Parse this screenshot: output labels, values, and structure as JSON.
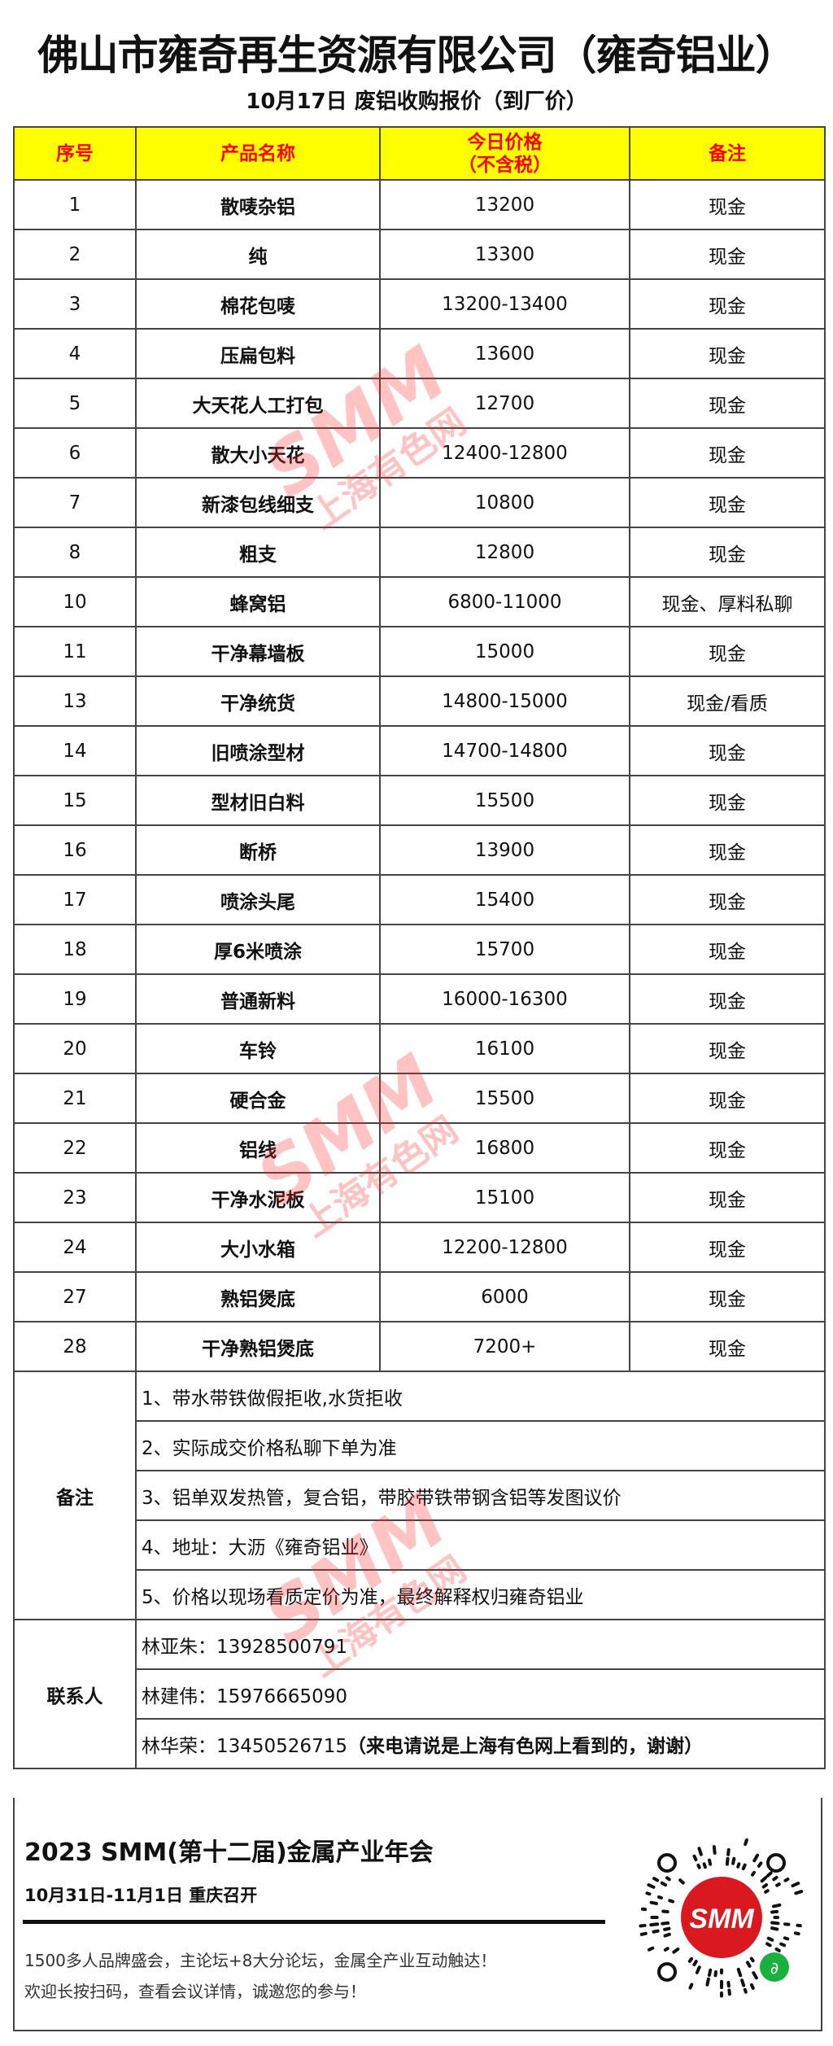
{
  "header": {
    "title": "佛山市雍奇再生资源有限公司（雍奇铝业）",
    "subtitle": "10月17日 废铝收购报价（到厂价）"
  },
  "table": {
    "columns": [
      "序号",
      "产品名称",
      "今日价格",
      "（不含税）",
      "备注"
    ],
    "rows": [
      {
        "no": "1",
        "name": "散唛杂铝",
        "price": "13200",
        "note": "现金"
      },
      {
        "no": "2",
        "name": "纯",
        "price": "13300",
        "note": "现金"
      },
      {
        "no": "3",
        "name": "棉花包唛",
        "price": "13200-13400",
        "note": "现金"
      },
      {
        "no": "4",
        "name": "压扁包料",
        "price": "13600",
        "note": "现金"
      },
      {
        "no": "5",
        "name": "大天花人工打包",
        "price": "12700",
        "note": "现金"
      },
      {
        "no": "6",
        "name": "散大小天花",
        "price": "12400-12800",
        "note": "现金"
      },
      {
        "no": "7",
        "name": "新漆包线细支",
        "price": "10800",
        "note": "现金"
      },
      {
        "no": "8",
        "name": "粗支",
        "price": "12800",
        "note": "现金"
      },
      {
        "no": "10",
        "name": "蜂窝铝",
        "price": "6800-11000",
        "note": "现金、厚料私聊"
      },
      {
        "no": "11",
        "name": "干净幕墙板",
        "price": "15000",
        "note": "现金"
      },
      {
        "no": "13",
        "name": "干净统货",
        "price": "14800-15000",
        "note": "现金/看质"
      },
      {
        "no": "14",
        "name": "旧喷涂型材",
        "price": "14700-14800",
        "note": "现金"
      },
      {
        "no": "15",
        "name": "型材旧白料",
        "price": "15500",
        "note": "现金"
      },
      {
        "no": "16",
        "name": "断桥",
        "price": "13900",
        "note": "现金"
      },
      {
        "no": "17",
        "name": "喷涂头尾",
        "price": "15400",
        "note": "现金"
      },
      {
        "no": "18",
        "name": "厚6米喷涂",
        "price": "15700",
        "note": "现金"
      },
      {
        "no": "19",
        "name": "普通新料",
        "price": "16000-16300",
        "note": "现金"
      },
      {
        "no": "20",
        "name": "车铃",
        "price": "16100",
        "note": "现金"
      },
      {
        "no": "21",
        "name": "硬合金",
        "price": "15500",
        "note": "现金"
      },
      {
        "no": "22",
        "name": "铝线",
        "price": "16800",
        "note": "现金"
      },
      {
        "no": "23",
        "name": "干净水泥板",
        "price": "15100",
        "note": "现金"
      },
      {
        "no": "24",
        "name": "大小水箱",
        "price": "12200-12800",
        "note": "现金"
      },
      {
        "no": "27",
        "name": "熟铝煲底",
        "price": "6000",
        "note": "现金"
      },
      {
        "no": "28",
        "name": "干净熟铝煲底",
        "price": "7200+",
        "note": "现金"
      }
    ]
  },
  "notes": {
    "label": "备注",
    "items": [
      "1、带水带铁做假拒收,水货拒收",
      "2、实际成交价格私聊下单为准",
      "3、铝单双发热管，复合铝，带胶带铁带钢含铝等发图议价",
      "4、地址：大沥《雍奇铝业》",
      "5、价格以现场看质定价为准，最终解释权归雍奇铝业"
    ]
  },
  "contacts": {
    "label": "联系人",
    "items": [
      {
        "text": "林亚朱：13928500791",
        "extra": ""
      },
      {
        "text": "林建伟：15976665090",
        "extra": ""
      },
      {
        "text": "林华荣：13450526715",
        "extra": "（来电请说是上海有色网上看到的，谢谢）"
      }
    ]
  },
  "promo": {
    "title": "2023 SMM(第十二届)金属产业年会",
    "date": "10月31日-11月1日  重庆召开",
    "line1": "1500多人品牌盛会，主论坛+8大分论坛，金属全产业互动触达！",
    "line2": "欢迎长按扫码，查看会议详情，诚邀您的参与！",
    "qr_logo": "SMM"
  },
  "watermark": {
    "brand": "SMM",
    "name": "上海有色网"
  },
  "colors": {
    "header_bg": "#ffff00",
    "header_text": "#ff0000",
    "watermark": "#ff2828"
  }
}
